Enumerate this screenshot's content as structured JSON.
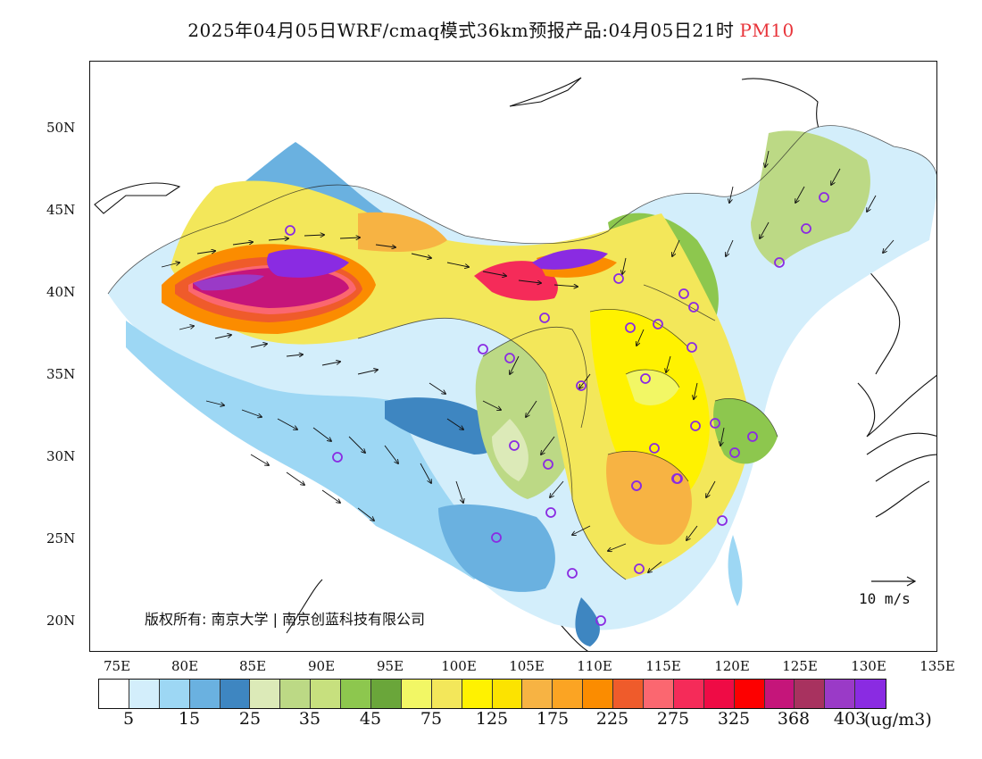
{
  "title": {
    "main": "2025年04月05日WRF/cmaq模式36km预报产品:04月05日21时",
    "pollutant": "PM10",
    "pollutant_color": "#e8343a"
  },
  "axes": {
    "lat_labels": [
      "50N",
      "45N",
      "40N",
      "35N",
      "30N",
      "25N",
      "20N"
    ],
    "lon_labels": [
      "75E",
      "80E",
      "85E",
      "90E",
      "95E",
      "100E",
      "105E",
      "110E",
      "115E",
      "120E",
      "125E",
      "130E",
      "135E"
    ]
  },
  "copyright": "版权所有: 南京大学 | 南京创蓝科技有限公司",
  "wind_scale_label": "10 m/s",
  "legend": {
    "colors": [
      "#ffffff",
      "#d3eefb",
      "#9dd7f4",
      "#6ab1e0",
      "#3e86c1",
      "#dceab8",
      "#bcd985",
      "#c7e07e",
      "#8dc74e",
      "#6aa63a",
      "#f2f765",
      "#f3e75a",
      "#fff200",
      "#fce300",
      "#f7b343",
      "#fba423",
      "#fb8c00",
      "#ef5b2b",
      "#fb6770",
      "#f52b59",
      "#ef0b45",
      "#fd0000",
      "#c5157a",
      "#a8325f",
      "#9a3ac7",
      "#8a2be2"
    ],
    "ticks": [
      "5",
      "15",
      "25",
      "35",
      "45",
      "75",
      "125",
      "175",
      "225",
      "275",
      "325",
      "368",
      "403"
    ],
    "unit": "(ug/m3)"
  },
  "map": {
    "palette": {
      "clean": "#d3eefb",
      "light_blue": "#9dd7f4",
      "mid_blue": "#6ab1e0",
      "deep_blue": "#3e86c1",
      "pale_green": "#dceab8",
      "green": "#bcd985",
      "bright_green": "#8dc74e",
      "dark_green": "#6aa63a",
      "yellow_light": "#f2f765",
      "yellow": "#fff200",
      "orange_light": "#f7b343",
      "orange": "#fb8c00",
      "red_orange": "#ef5b2b",
      "pink": "#fb6770",
      "red": "#ef0b45",
      "magenta": "#c5157a",
      "purple": "#8a2be2"
    },
    "station_color": "#8a2be2"
  }
}
